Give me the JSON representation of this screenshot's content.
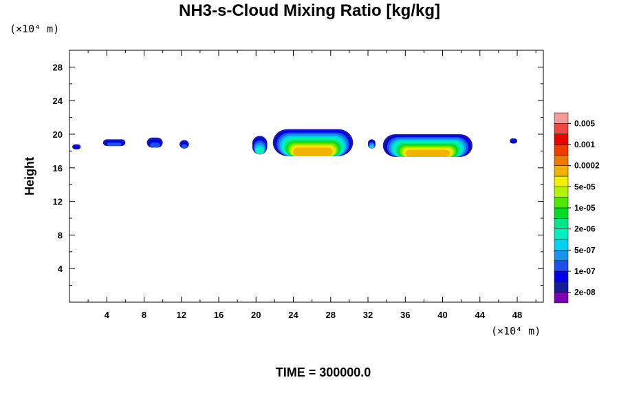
{
  "chart_data": {
    "type": "heatmap",
    "title": "NH3-s-Cloud Mixing Ratio [kg/kg]",
    "ylabel": "Height",
    "xlabel": "",
    "x_unit": "(×10⁴ m)",
    "y_unit": "(×10⁴ m)",
    "xlim": [
      0,
      50.8
    ],
    "ylim": [
      0,
      30
    ],
    "x_ticks": [
      4,
      8,
      12,
      16,
      20,
      24,
      28,
      32,
      36,
      40,
      44,
      48
    ],
    "y_ticks": [
      4,
      8,
      12,
      16,
      20,
      24,
      28
    ],
    "grid": false,
    "colorbar": {
      "colors": [
        "#7b00b4",
        "#1a1aa0",
        "#0000e6",
        "#1e50f0",
        "#1e90f0",
        "#00d2f0",
        "#00f0c0",
        "#00e68c",
        "#00dc28",
        "#50e600",
        "#b4f000",
        "#f0f000",
        "#f0b400",
        "#f07800",
        "#f03c00",
        "#e60000",
        "#f04646",
        "#f09a9a"
      ],
      "labels": [
        "2e-08",
        "1e-07",
        "5e-07",
        "2e-06",
        "1e-05",
        "5e-05",
        "0.0002",
        "0.001",
        "0.005"
      ]
    },
    "cloud_regions": [
      {
        "x_range": [
          0.3,
          1.2
        ],
        "y_range": [
          18.2,
          18.8
        ],
        "max_level": 2
      },
      {
        "x_range": [
          3.6,
          6.0
        ],
        "y_range": [
          18.6,
          19.4
        ],
        "max_level": 3
      },
      {
        "x_range": [
          8.3,
          10.0
        ],
        "y_range": [
          18.4,
          19.6
        ],
        "max_level": 3
      },
      {
        "x_range": [
          11.8,
          12.8
        ],
        "y_range": [
          18.3,
          19.3
        ],
        "max_level": 3
      },
      {
        "x_range": [
          19.6,
          21.2
        ],
        "y_range": [
          17.6,
          19.8
        ],
        "max_level": 6
      },
      {
        "x_range": [
          21.8,
          30.4
        ],
        "y_range": [
          17.4,
          20.6
        ],
        "max_level": 12
      },
      {
        "x_range": [
          32.0,
          32.8
        ],
        "y_range": [
          18.3,
          19.4
        ],
        "max_level": 5
      },
      {
        "x_range": [
          33.6,
          43.2
        ],
        "y_range": [
          17.3,
          20.0
        ],
        "max_level": 12
      },
      {
        "x_range": [
          47.2,
          48.0
        ],
        "y_range": [
          18.9,
          19.5
        ],
        "max_level": 2
      }
    ]
  },
  "footer": {
    "time_label": "TIME = 300000.0"
  }
}
